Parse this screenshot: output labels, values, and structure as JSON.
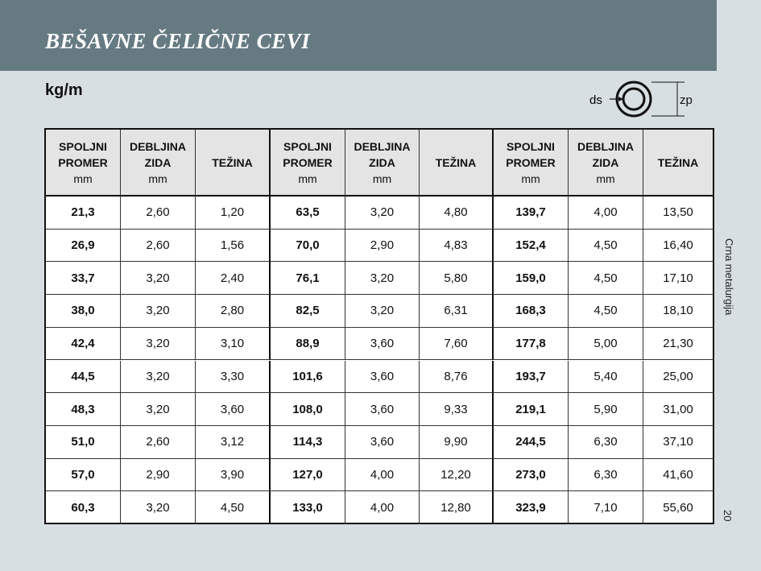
{
  "header": {
    "title": "BEŠAVNE ČELIČNE CEVI"
  },
  "unit_label": "kg/m",
  "diagram": {
    "inner_label": "ds",
    "outer_label": "zp"
  },
  "side_text": "Crna metalurgija",
  "page_number": "20",
  "table": {
    "headers": [
      {
        "lines": [
          "SPOLJNI",
          "PROMER"
        ],
        "unit": "mm"
      },
      {
        "lines": [
          "DEBLJINA",
          "ZIDA"
        ],
        "unit": "mm"
      },
      {
        "lines": [
          "TEŽINA"
        ]
      },
      {
        "lines": [
          "SPOLJNI",
          "PROMER"
        ],
        "unit": "mm"
      },
      {
        "lines": [
          "DEBLJINA",
          "ZIDA"
        ],
        "unit": "mm"
      },
      {
        "lines": [
          "TEŽINA"
        ]
      },
      {
        "lines": [
          "SPOLJNI",
          "PROMER"
        ],
        "unit": "mm"
      },
      {
        "lines": [
          "DEBLJINA",
          "ZIDA"
        ],
        "unit": "mm"
      },
      {
        "lines": [
          "TEŽINA"
        ]
      }
    ],
    "rows": [
      [
        "21,3",
        "2,60",
        "1,20",
        "63,5",
        "3,20",
        "4,80",
        "139,7",
        "4,00",
        "13,50"
      ],
      [
        "26,9",
        "2,60",
        "1,56",
        "70,0",
        "2,90",
        "4,83",
        "152,4",
        "4,50",
        "16,40"
      ],
      [
        "33,7",
        "3,20",
        "2,40",
        "76,1",
        "3,20",
        "5,80",
        "159,0",
        "4,50",
        "17,10"
      ],
      [
        "38,0",
        "3,20",
        "2,80",
        "82,5",
        "3,20",
        "6,31",
        "168,3",
        "4,50",
        "18,10"
      ],
      [
        "42,4",
        "3,20",
        "3,10",
        "88,9",
        "3,60",
        "7,60",
        "177,8",
        "5,00",
        "21,30"
      ],
      [
        "44,5",
        "3,20",
        "3,30",
        "101,6",
        "3,60",
        "8,76",
        "193,7",
        "5,40",
        "25,00"
      ],
      [
        "48,3",
        "3,20",
        "3,60",
        "108,0",
        "3,60",
        "9,33",
        "219,1",
        "5,90",
        "31,00"
      ],
      [
        "51,0",
        "2,60",
        "3,12",
        "114,3",
        "3,60",
        "9,90",
        "244,5",
        "6,30",
        "37,10"
      ],
      [
        "57,0",
        "2,90",
        "3,90",
        "127,0",
        "4,00",
        "12,20",
        "273,0",
        "6,30",
        "41,60"
      ],
      [
        "60,3",
        "3,20",
        "4,50",
        "133,0",
        "4,00",
        "12,80",
        "323,9",
        "7,10",
        "55,60"
      ]
    ]
  }
}
